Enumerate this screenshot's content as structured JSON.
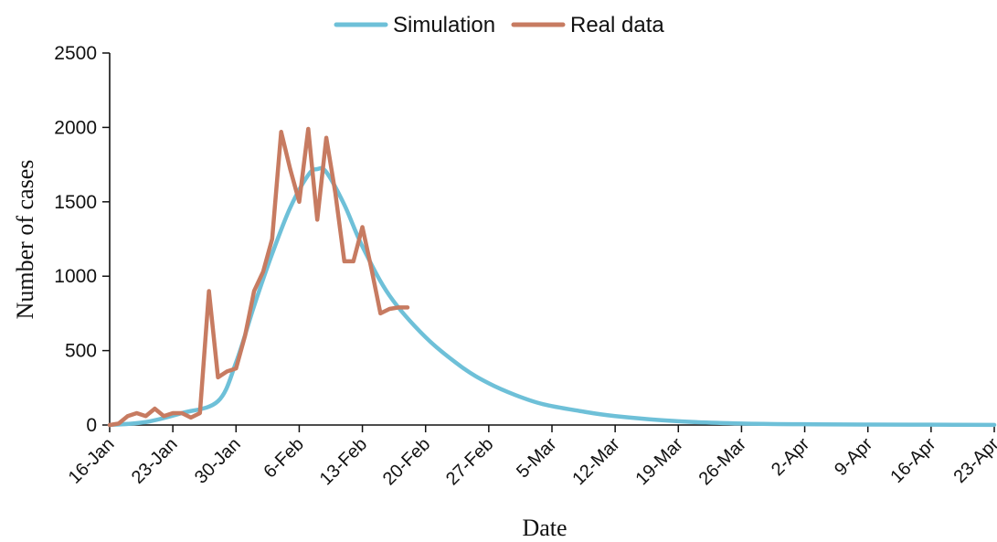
{
  "chart_data": {
    "type": "line",
    "xlabel": "Date",
    "ylabel": "Number of cases",
    "ylim": [
      0,
      2500
    ],
    "yticks": [
      0,
      500,
      1000,
      1500,
      2000,
      2500
    ],
    "xlim": [
      "2020-01-16",
      "2020-04-23"
    ],
    "xtick_labels": [
      "16-Jan",
      "23-Jan",
      "30-Jan",
      "6-Feb",
      "13-Feb",
      "20-Feb",
      "27-Feb",
      "5-Mar",
      "12-Mar",
      "19-Mar",
      "26-Mar",
      "2-Apr",
      "9-Apr",
      "16-Apr",
      "23-Apr"
    ],
    "legend_position": "top-center",
    "series": [
      {
        "name": "Simulation",
        "color": "#6ec0d8",
        "x": [
          "2020-01-16",
          "2020-01-20",
          "2020-01-24",
          "2020-01-28",
          "2020-01-30",
          "2020-02-01",
          "2020-02-03",
          "2020-02-05",
          "2020-02-07",
          "2020-02-08",
          "2020-02-09",
          "2020-02-11",
          "2020-02-13",
          "2020-02-16",
          "2020-02-20",
          "2020-02-24",
          "2020-02-27",
          "2020-03-01",
          "2020-03-04",
          "2020-03-08",
          "2020-03-12",
          "2020-03-19",
          "2020-03-26",
          "2020-04-02",
          "2020-04-09",
          "2020-04-16",
          "2020-04-23"
        ],
        "y": [
          0,
          20,
          80,
          160,
          420,
          800,
          1150,
          1460,
          1680,
          1720,
          1700,
          1480,
          1200,
          870,
          590,
          390,
          280,
          200,
          140,
          95,
          60,
          25,
          10,
          5,
          3,
          2,
          1
        ]
      },
      {
        "name": "Real data",
        "color": "#c77b61",
        "x": [
          "2020-01-16",
          "2020-01-17",
          "2020-01-18",
          "2020-01-19",
          "2020-01-20",
          "2020-01-21",
          "2020-01-22",
          "2020-01-23",
          "2020-01-24",
          "2020-01-25",
          "2020-01-26",
          "2020-01-27",
          "2020-01-28",
          "2020-01-29",
          "2020-01-30",
          "2020-01-31",
          "2020-02-01",
          "2020-02-02",
          "2020-02-03",
          "2020-02-04",
          "2020-02-05",
          "2020-02-06",
          "2020-02-07",
          "2020-02-08",
          "2020-02-09",
          "2020-02-10",
          "2020-02-11",
          "2020-02-12",
          "2020-02-13",
          "2020-02-14",
          "2020-02-15",
          "2020-02-16",
          "2020-02-17",
          "2020-02-18"
        ],
        "y": [
          0,
          10,
          60,
          80,
          60,
          110,
          60,
          80,
          80,
          50,
          80,
          900,
          320,
          360,
          380,
          600,
          900,
          1030,
          1250,
          1970,
          1720,
          1500,
          1990,
          1380,
          1930,
          1560,
          1100,
          1100,
          1330,
          1050,
          750,
          780,
          790,
          790
        ]
      }
    ]
  }
}
